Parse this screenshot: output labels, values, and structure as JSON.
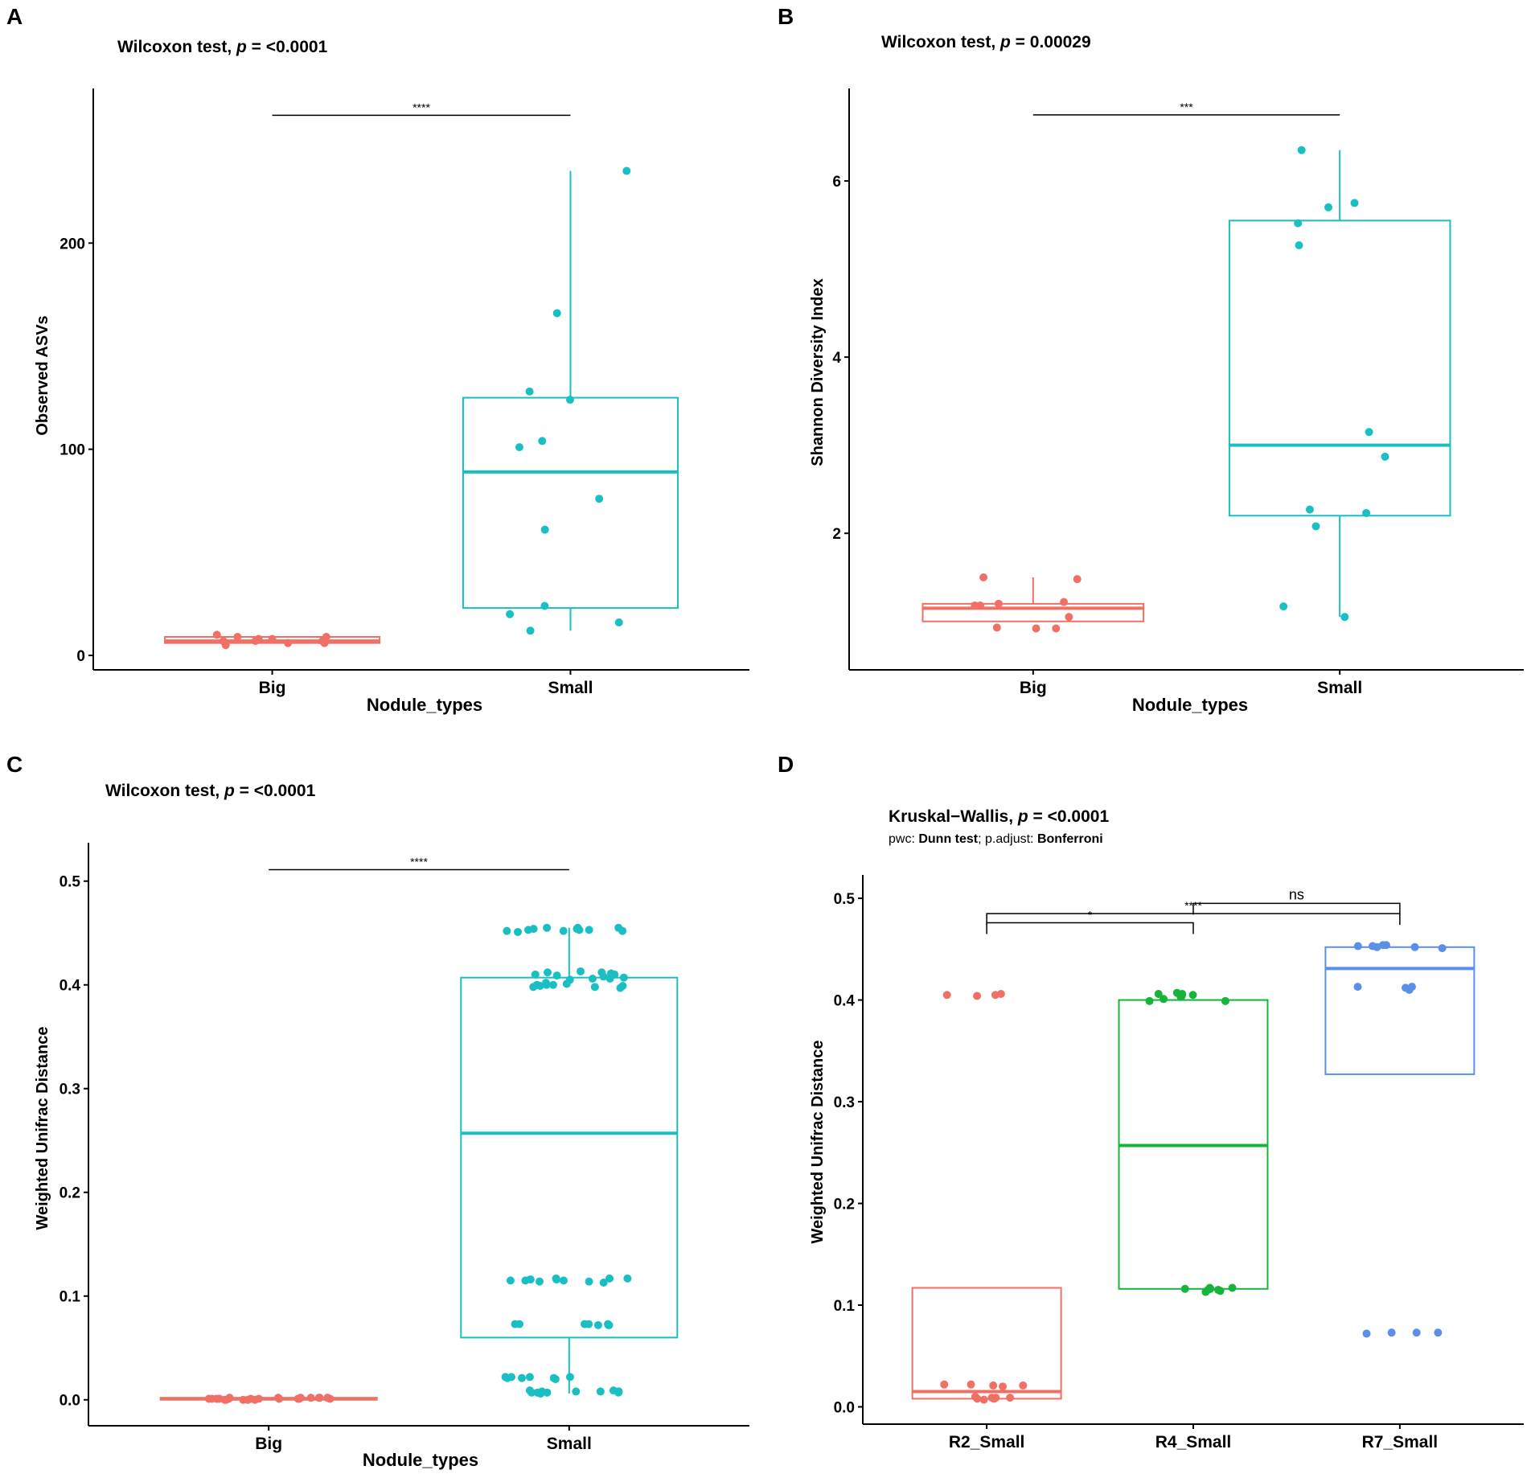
{
  "figure": {
    "colors": {
      "red": "#F07066",
      "teal": "#1ABFC4",
      "green": "#16B43A",
      "blue": "#5C8FE8",
      "axis": "#000000"
    }
  },
  "chart_data": [
    {
      "panel": "A",
      "type": "box",
      "title_prefix": "Wilcoxon test, ",
      "title_p": "p",
      "title_suffix": " = <0.0001",
      "xlabel": "Nodule_types",
      "ylabel": "Observed ASVs",
      "categories": [
        "Big",
        "Small"
      ],
      "yticks": [
        0,
        100,
        200
      ],
      "ytick_labels": [
        "0",
        "100",
        "200"
      ],
      "ylim": [
        -7,
        275
      ],
      "boxes": [
        {
          "category": "Big",
          "color": "red",
          "q1": 6,
          "median": 7,
          "q3": 9,
          "whisker_low": 6,
          "whisker_high": 9,
          "points": [
            7,
            9,
            10,
            8,
            6,
            5,
            7,
            8,
            6,
            9,
            7
          ]
        },
        {
          "category": "Small",
          "color": "teal",
          "q1": 23,
          "median": 89,
          "q3": 125,
          "whisker_low": 12,
          "whisker_high": 235,
          "points": [
            235,
            166,
            128,
            124,
            104,
            101,
            76,
            61,
            24,
            20,
            16,
            12
          ]
        }
      ],
      "brackets": [
        {
          "from": "Big",
          "to": "Small",
          "label": "****",
          "y": 262
        }
      ]
    },
    {
      "panel": "B",
      "type": "box",
      "title_prefix": "Wilcoxon test, ",
      "title_p": "p",
      "title_suffix": " = 0.00029",
      "xlabel": "Nodule_types",
      "ylabel": "Shannon Diversity Index",
      "categories": [
        "Big",
        "Small"
      ],
      "yticks": [
        2,
        4,
        6
      ],
      "ytick_labels": [
        "2",
        "4",
        "6"
      ],
      "ylim": [
        0.45,
        7.05
      ],
      "boxes": [
        {
          "category": "Big",
          "color": "red",
          "q1": 1.0,
          "median": 1.15,
          "q3": 1.2,
          "whisker_low": 1.0,
          "whisker_high": 1.5,
          "points": [
            1.5,
            1.48,
            1.22,
            1.18,
            1.2,
            1.18,
            1.05,
            0.93,
            0.92,
            0.92
          ]
        },
        {
          "category": "Small",
          "color": "teal",
          "q1": 2.2,
          "median": 3.0,
          "q3": 5.55,
          "whisker_low": 1.05,
          "whisker_high": 6.35,
          "points": [
            6.35,
            5.7,
            5.52,
            5.75,
            5.27,
            3.15,
            2.87,
            2.27,
            2.23,
            2.08,
            1.17,
            1.05
          ]
        }
      ],
      "brackets": [
        {
          "from": "Big",
          "to": "Small",
          "label": "***",
          "y": 6.75
        }
      ]
    },
    {
      "panel": "C",
      "type": "box",
      "title_prefix": "Wilcoxon test, ",
      "title_p": "p",
      "title_suffix": " = <0.0001",
      "xlabel": "Nodule_types",
      "ylabel": "Weighted Unifrac Distance",
      "categories": [
        "Big",
        "Small"
      ],
      "yticks": [
        0.0,
        0.1,
        0.2,
        0.3,
        0.4,
        0.5
      ],
      "ytick_labels": [
        "0.0",
        "0.1",
        "0.2",
        "0.3",
        "0.4",
        "0.5"
      ],
      "ylim": [
        -0.025,
        0.537
      ],
      "boxes": [
        {
          "category": "Big",
          "color": "red",
          "q1": 0.0,
          "median": 0.001,
          "q3": 0.002,
          "whisker_low": 0.0,
          "whisker_high": 0.002,
          "points": [
            0.001,
            0.002,
            0.0,
            0.001,
            0.002,
            0.001,
            0.0,
            0.002,
            0.001,
            0.001,
            0.0,
            0.002,
            0.001,
            0.001,
            0.002,
            0.0,
            0.001,
            0.002,
            0.001,
            0.0,
            0.001,
            0.002,
            0.001,
            0.001
          ]
        },
        {
          "category": "Small",
          "color": "teal",
          "q1": 0.06,
          "median": 0.257,
          "q3": 0.407,
          "whisker_low": 0.006,
          "whisker_high": 0.455,
          "points": [
            0.455,
            0.453,
            0.452,
            0.454,
            0.451,
            0.455,
            0.453,
            0.452,
            0.454,
            0.453,
            0.452,
            0.455,
            0.412,
            0.41,
            0.408,
            0.413,
            0.406,
            0.41,
            0.405,
            0.412,
            0.409,
            0.407,
            0.411,
            0.406,
            0.4,
            0.398,
            0.401,
            0.399,
            0.4,
            0.398,
            0.402,
            0.399,
            0.4,
            0.397,
            0.117,
            0.116,
            0.115,
            0.117,
            0.114,
            0.116,
            0.115,
            0.117,
            0.113,
            0.116,
            0.114,
            0.115,
            0.073,
            0.073,
            0.072,
            0.073,
            0.072,
            0.073,
            0.072,
            0.073,
            0.022,
            0.021,
            0.022,
            0.02,
            0.022,
            0.021,
            0.022,
            0.021,
            0.008,
            0.007,
            0.009,
            0.008,
            0.007,
            0.008,
            0.009,
            0.007,
            0.008,
            0.007,
            0.008,
            0.006
          ]
        }
      ],
      "brackets": [
        {
          "from": "Big",
          "to": "Small",
          "label": "****",
          "y": 0.511
        }
      ]
    },
    {
      "panel": "D",
      "type": "box",
      "title_prefix": "Kruskal−Wallis, ",
      "title_p": "p",
      "title_suffix": " = <0.0001",
      "subtitle_parts": [
        "pwc: ",
        "Dunn test",
        "; p.adjust: ",
        "Bonferroni"
      ],
      "xlabel": "",
      "ylabel": "Weighted Unifrac Distance",
      "categories": [
        "R2_Small",
        "R4_Small",
        "R7_Small"
      ],
      "yticks": [
        0.0,
        0.1,
        0.2,
        0.3,
        0.4,
        0.5
      ],
      "ytick_labels": [
        "0.0",
        "0.1",
        "0.2",
        "0.3",
        "0.4",
        "0.5"
      ],
      "ylim": [
        -0.017,
        0.523
      ],
      "boxes": [
        {
          "category": "R2_Small",
          "color": "red",
          "q1": 0.008,
          "median": 0.015,
          "q3": 0.117,
          "whisker_low": 0.008,
          "whisker_high": 0.117,
          "points": [
            0.405,
            0.406,
            0.405,
            0.404,
            0.021,
            0.022,
            0.021,
            0.02,
            0.022,
            0.009,
            0.008,
            0.01,
            0.009,
            0.007,
            0.008,
            0.009
          ]
        },
        {
          "category": "R4_Small",
          "color": "green",
          "q1": 0.116,
          "median": 0.257,
          "q3": 0.4,
          "whisker_low": 0.116,
          "whisker_high": 0.4,
          "points": [
            0.407,
            0.406,
            0.405,
            0.403,
            0.401,
            0.399,
            0.399,
            0.404,
            0.406,
            0.117,
            0.116,
            0.115,
            0.114,
            0.116,
            0.117,
            0.115,
            0.113
          ]
        },
        {
          "category": "R7_Small",
          "color": "blue",
          "q1": 0.327,
          "median": 0.431,
          "q3": 0.452,
          "whisker_low": 0.327,
          "whisker_high": 0.452,
          "points": [
            0.454,
            0.453,
            0.452,
            0.454,
            0.451,
            0.453,
            0.452,
            0.413,
            0.413,
            0.412,
            0.41,
            0.073,
            0.073,
            0.072,
            0.073
          ]
        }
      ],
      "brackets": [
        {
          "from": "R2_Small",
          "to": "R4_Small",
          "label": "*",
          "y": 0.476
        },
        {
          "from": "R2_Small",
          "to": "R7_Small",
          "label": "****",
          "y": 0.485
        },
        {
          "from": "R4_Small",
          "to": "R7_Small",
          "label": "ns",
          "y": 0.495
        }
      ]
    }
  ]
}
